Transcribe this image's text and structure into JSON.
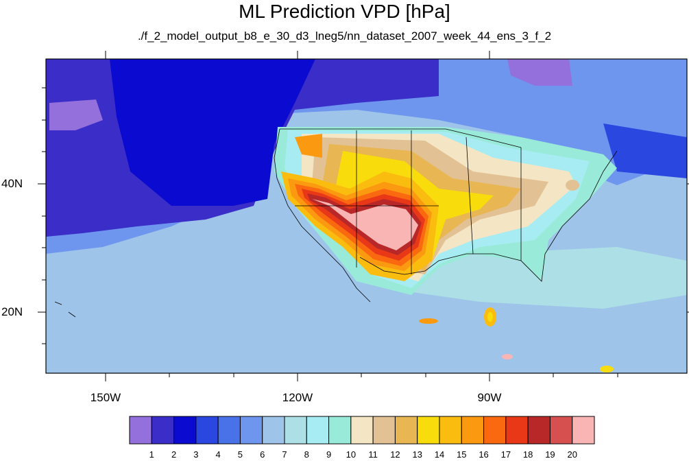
{
  "title": "ML Prediction VPD [hPa]",
  "subtitle": "./f_2_model_output_b8_e_30_d3_lneg5/nn_dataset_2007_week_44_ens_3_f_2",
  "map": {
    "lat_labels": [
      "40N",
      "20N"
    ],
    "lon_labels": [
      "150W",
      "120W",
      "90W"
    ]
  },
  "colorbar": {
    "colors": [
      "#9370db",
      "#3a2dc8",
      "#0a0ad0",
      "#2a48e0",
      "#4a72e8",
      "#6f96ee",
      "#9ec4ea",
      "#acdfe6",
      "#a6ecf2",
      "#9aeada",
      "#f4e6c4",
      "#e2c294",
      "#e8b652",
      "#f8dc0c",
      "#fbbc10",
      "#fb9a10",
      "#fa6810",
      "#e83818",
      "#b82828",
      "#d65050",
      "#f9b4b4"
    ],
    "labels": [
      "1",
      "2",
      "3",
      "4",
      "5",
      "6",
      "7",
      "8",
      "9",
      "10",
      "11",
      "12",
      "13",
      "14",
      "15",
      "16",
      "17",
      "18",
      "19",
      "20"
    ]
  }
}
